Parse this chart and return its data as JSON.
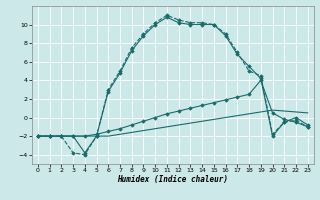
{
  "xlabel": "Humidex (Indice chaleur)",
  "bg_color": "#cce8e8",
  "line_color": "#1a6b6b",
  "xlim": [
    -0.5,
    23.5
  ],
  "ylim": [
    -5,
    12
  ],
  "yticks": [
    -4,
    -2,
    0,
    2,
    4,
    6,
    8,
    10
  ],
  "xticks": [
    0,
    1,
    2,
    3,
    4,
    5,
    6,
    7,
    8,
    9,
    10,
    11,
    12,
    13,
    14,
    15,
    16,
    17,
    18,
    19,
    20,
    21,
    22,
    23
  ],
  "lines": [
    {
      "x": [
        0,
        1,
        2,
        3,
        4,
        5,
        6,
        7,
        8,
        9,
        10,
        11,
        12,
        13,
        14,
        15,
        16,
        17,
        18,
        19,
        20,
        21,
        22,
        23
      ],
      "y": [
        -2,
        -2,
        -2,
        -2,
        -2,
        -2,
        -2,
        -1.8,
        -1.6,
        -1.4,
        -1.2,
        -1.0,
        -0.8,
        -0.6,
        -0.4,
        -0.2,
        0.0,
        0.2,
        0.4,
        0.6,
        0.8,
        0.7,
        0.6,
        0.5
      ],
      "style": "-",
      "marker": null,
      "markersize": 0,
      "linewidth": 0.8
    },
    {
      "x": [
        0,
        1,
        2,
        3,
        4,
        5,
        6,
        7,
        8,
        9,
        10,
        11,
        12,
        13,
        14,
        15,
        16,
        17,
        18,
        19,
        20,
        21,
        22,
        23
      ],
      "y": [
        -2,
        -2,
        -2,
        -2,
        -2,
        -1.8,
        -1.5,
        -1.2,
        -0.8,
        -0.4,
        0.0,
        0.4,
        0.7,
        1.0,
        1.3,
        1.6,
        1.9,
        2.2,
        2.5,
        4.0,
        0.5,
        -0.2,
        -0.5,
        -1.0
      ],
      "style": "-",
      "marker": "D",
      "markersize": 1.8,
      "linewidth": 0.8
    },
    {
      "x": [
        0,
        1,
        2,
        3,
        4,
        5,
        6,
        7,
        8,
        9,
        10,
        11,
        12,
        13,
        14,
        15,
        16,
        17,
        18,
        19,
        20,
        21,
        22,
        23
      ],
      "y": [
        -2,
        -2,
        -2,
        -3.8,
        -4,
        -2,
        3,
        5,
        7.5,
        9,
        10.2,
        11,
        10.5,
        10.2,
        10.2,
        10.0,
        9.0,
        7.0,
        5.0,
        4.5,
        -1.8,
        -0.5,
        -0.3,
        -1.0
      ],
      "style": "--",
      "marker": "D",
      "markersize": 1.8,
      "linewidth": 0.8
    },
    {
      "x": [
        0,
        1,
        2,
        3,
        4,
        5,
        6,
        7,
        8,
        9,
        10,
        11,
        12,
        13,
        14,
        15,
        16,
        17,
        18,
        19,
        20,
        21,
        22,
        23
      ],
      "y": [
        -2,
        -2,
        -2,
        -2,
        -3.8,
        -2,
        2.8,
        4.8,
        7.2,
        8.8,
        10.0,
        10.8,
        10.2,
        10.0,
        10.0,
        10.0,
        8.8,
        6.8,
        5.5,
        4.2,
        -2.0,
        -0.5,
        0.0,
        -0.8
      ],
      "style": "-",
      "marker": "D",
      "markersize": 1.8,
      "linewidth": 0.8
    }
  ]
}
